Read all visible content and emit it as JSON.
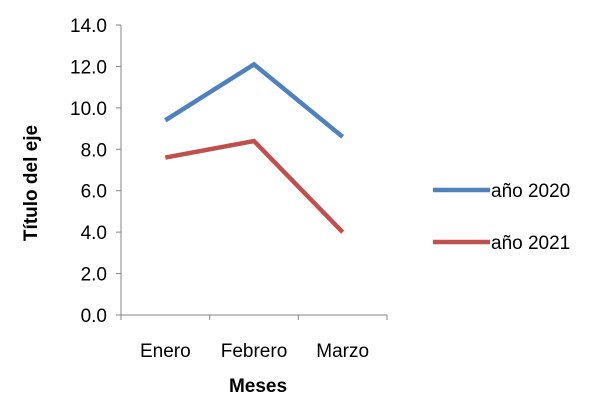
{
  "chart_data": {
    "type": "line",
    "categories": [
      "Enero",
      "Febrero",
      "Marzo"
    ],
    "series": [
      {
        "name": "año 2020",
        "values": [
          9.4,
          12.1,
          8.6
        ],
        "color": "#4F81BD"
      },
      {
        "name": "año 2021",
        "values": [
          7.6,
          8.4,
          4.0
        ],
        "color": "#C0504D"
      }
    ],
    "title": "",
    "xlabel": "Meses",
    "ylabel": "Título del eje",
    "ylim": [
      0,
      14
    ],
    "yticks": [
      "0.0",
      "2.0",
      "4.0",
      "6.0",
      "8.0",
      "10.0",
      "12.0",
      "14.0"
    ],
    "grid": false,
    "legend_position": "right"
  }
}
